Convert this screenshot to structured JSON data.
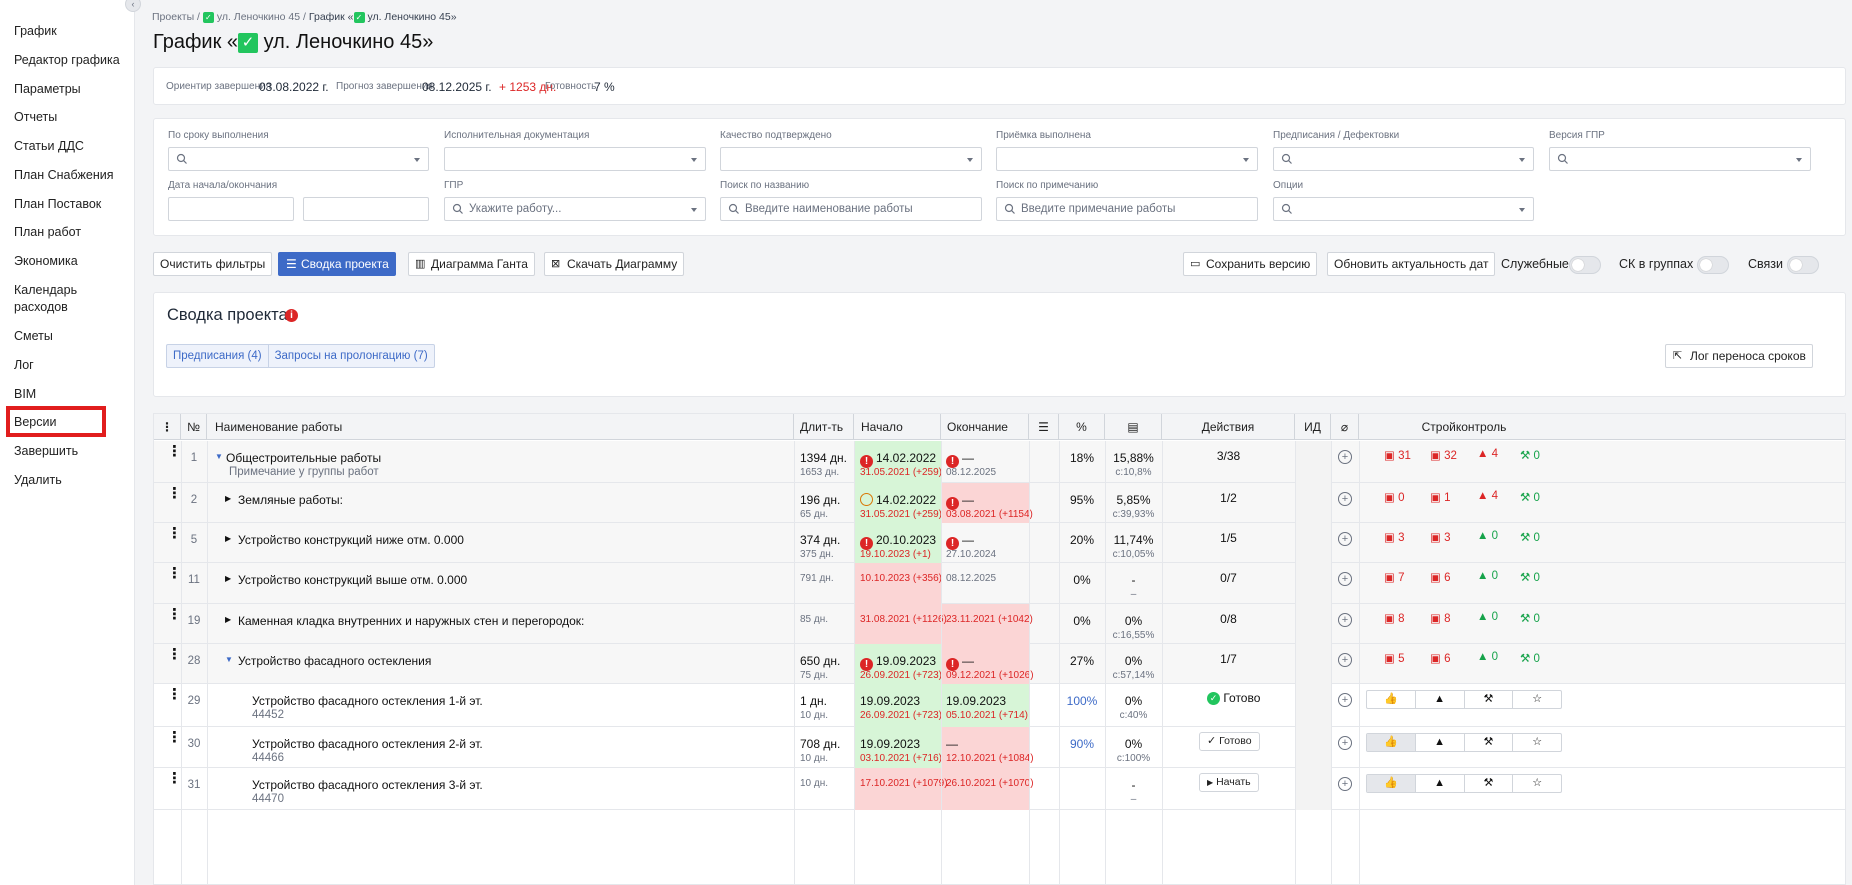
{
  "sidebar": {
    "items": [
      "График",
      "Редактор графика",
      "Параметры",
      "Отчеты",
      "Статьи ДДС",
      "План Снабжения",
      "План Поставок",
      "План работ",
      "Экономика",
      "Календарь расходов",
      "Сметы",
      "Лог",
      "BIM",
      "Версии",
      "Завершить",
      "Удалить"
    ]
  },
  "breadcrumb": {
    "a": "Проекты",
    "b": "ул. Леночкино 45",
    "c": "График «",
    "d": "ул. Леночкино 45»"
  },
  "title": {
    "pre": "График «",
    "post": " ул. Леночкино 45»"
  },
  "summary": {
    "l1": "Ориентир завершения",
    "v1": "03.08.2022 г.",
    "l2": "Прогноз завершения",
    "v2": "08.12.2025 г.",
    "v2b": "+ 1253 дн.",
    "l3": "Готовность",
    "v3": "7 %"
  },
  "filters": {
    "f1": "По сроку выполнения",
    "f2": "Исполнительная документация",
    "f3": "Качество подтверждено",
    "f4": "Приёмка выполнена",
    "f5": "Предписания / Дефектовки",
    "f6": "Версия ГПР",
    "f7": "Дата начала/окончания",
    "f8": "ГПР",
    "f8ph": "Укажите работу...",
    "f9": "Поиск по названию",
    "f9ph": "Введите наименование работы",
    "f10": "Поиск по примечанию",
    "f10ph": "Введите примечание работы",
    "f11": "Опции"
  },
  "toolbar": {
    "clear": "Очистить фильтры",
    "summary": "Сводка проекта",
    "gantt": "Диаграмма Ганта",
    "download": "Скачать Диаграмму",
    "save": "Сохранить версию",
    "update": "Обновить актуальность дат",
    "t1": "Служебные",
    "t2": "СК в группах",
    "t3": "Связи"
  },
  "panel": {
    "title": "Сводка проекта",
    "tab1": "Предписания (4)",
    "tab2": "Запросы на пролонгацию (7)",
    "log": "Лог переноса сроков"
  },
  "table": {
    "headers": [
      "№",
      "Наименование работы",
      "Длит-ть",
      "Начало",
      "Окончание",
      "%",
      "Действия",
      "ИД",
      "Стройконтроль"
    ],
    "rows": [
      {
        "n": "1",
        "name": "Общестроительные работы",
        "note": "Примечание у группы работ",
        "d1": "1394 дн.",
        "d2": "1653 дн.",
        "s1": "14.02.2022",
        "s2": "31.05.2021 (+259)",
        "e1": "—",
        "e2": "08.12.2025",
        "p": "18%",
        "q1": "15,88%",
        "q2": "с:10,8%",
        "act": "3/38",
        "k": [
          "31",
          "32",
          "4",
          "0"
        ]
      },
      {
        "n": "2",
        "name": "Земляные работы:",
        "note": "",
        "d1": "196 дн.",
        "d2": "65 дн.",
        "s1": "14.02.2022",
        "s2": "31.05.2021 (+259)",
        "e1": "",
        "e2": "03.08.2021 (+1154)",
        "p": "95%",
        "q1": "5,85%",
        "q2": "с:39,93%",
        "act": "1/2",
        "k": [
          "0",
          "1",
          "4",
          "0"
        ]
      },
      {
        "n": "5",
        "name": "Устройство конструкций ниже отм. 0.000",
        "note": "",
        "d1": "374 дн.",
        "d2": "375 дн.",
        "s1": "20.10.2023",
        "s2": "19.10.2023 (+1)",
        "e1": "—",
        "e2": "27.10.2024",
        "p": "20%",
        "q1": "11,74%",
        "q2": "с:10,05%",
        "act": "1/5",
        "k": [
          "3",
          "3",
          "0",
          "0"
        ]
      },
      {
        "n": "11",
        "name": "Устройство конструкций выше отм. 0.000",
        "note": "",
        "d1": "",
        "d2": "791 дн.",
        "s1": "",
        "s2": "10.10.2023 (+356)",
        "e1": "",
        "e2": "08.12.2025",
        "p": "0%",
        "q1": "-",
        "q2": "–",
        "act": "0/7",
        "k": [
          "7",
          "6",
          "0",
          "0"
        ]
      },
      {
        "n": "19",
        "name": "Каменная кладка внутренних и наружных стен и перегородок:",
        "note": "",
        "d1": "",
        "d2": "85 дн.",
        "s1": "",
        "s2": "31.08.2021 (+1126)",
        "e1": "",
        "e2": "23.11.2021 (+1042)",
        "p": "0%",
        "q1": "0%",
        "q2": "с:16,55%",
        "act": "0/8",
        "k": [
          "8",
          "8",
          "0",
          "0"
        ]
      },
      {
        "n": "28",
        "name": "Устройство фасадного остекления",
        "note": "",
        "d1": "650 дн.",
        "d2": "75 дн.",
        "s1": "19.09.2023",
        "s2": "26.09.2021 (+723)",
        "e1": "—",
        "e2": "09.12.2021 (+1026)",
        "p": "27%",
        "q1": "0%",
        "q2": "с:57,14%",
        "act": "1/7",
        "k": [
          "5",
          "6",
          "0",
          "0"
        ]
      },
      {
        "n": "29",
        "name": "Устройство фасадного остекления 1-й эт.",
        "note": "44452",
        "d1": "1 дн.",
        "d2": "10 дн.",
        "s1": "19.09.2023",
        "s2": "26.09.2021 (+723)",
        "e1": "19.09.2023",
        "e2": "05.10.2021 (+714)",
        "p": "100%",
        "q1": "0%",
        "q2": "с:40%",
        "act": "Готово"
      },
      {
        "n": "30",
        "name": "Устройство фасадного остекления 2-й эт.",
        "note": "44466",
        "d1": "708 дн.",
        "d2": "10 дн.",
        "s1": "19.09.2023",
        "s2": "03.10.2021 (+716)",
        "e1": "—",
        "e2": "12.10.2021 (+1084)",
        "p": "90%",
        "q1": "0%",
        "q2": "с:100%",
        "act": "Готово"
      },
      {
        "n": "31",
        "name": "Устройство фасадного остекления 3-й эт.",
        "note": "44470",
        "d1": "",
        "d2": "10 дн.",
        "s1": "",
        "s2": "17.10.2021 (+1079)",
        "e1": "",
        "e2": "26.10.2021 (+1070)",
        "p": "",
        "q1": "-",
        "q2": "–",
        "act": "Начать"
      }
    ]
  }
}
